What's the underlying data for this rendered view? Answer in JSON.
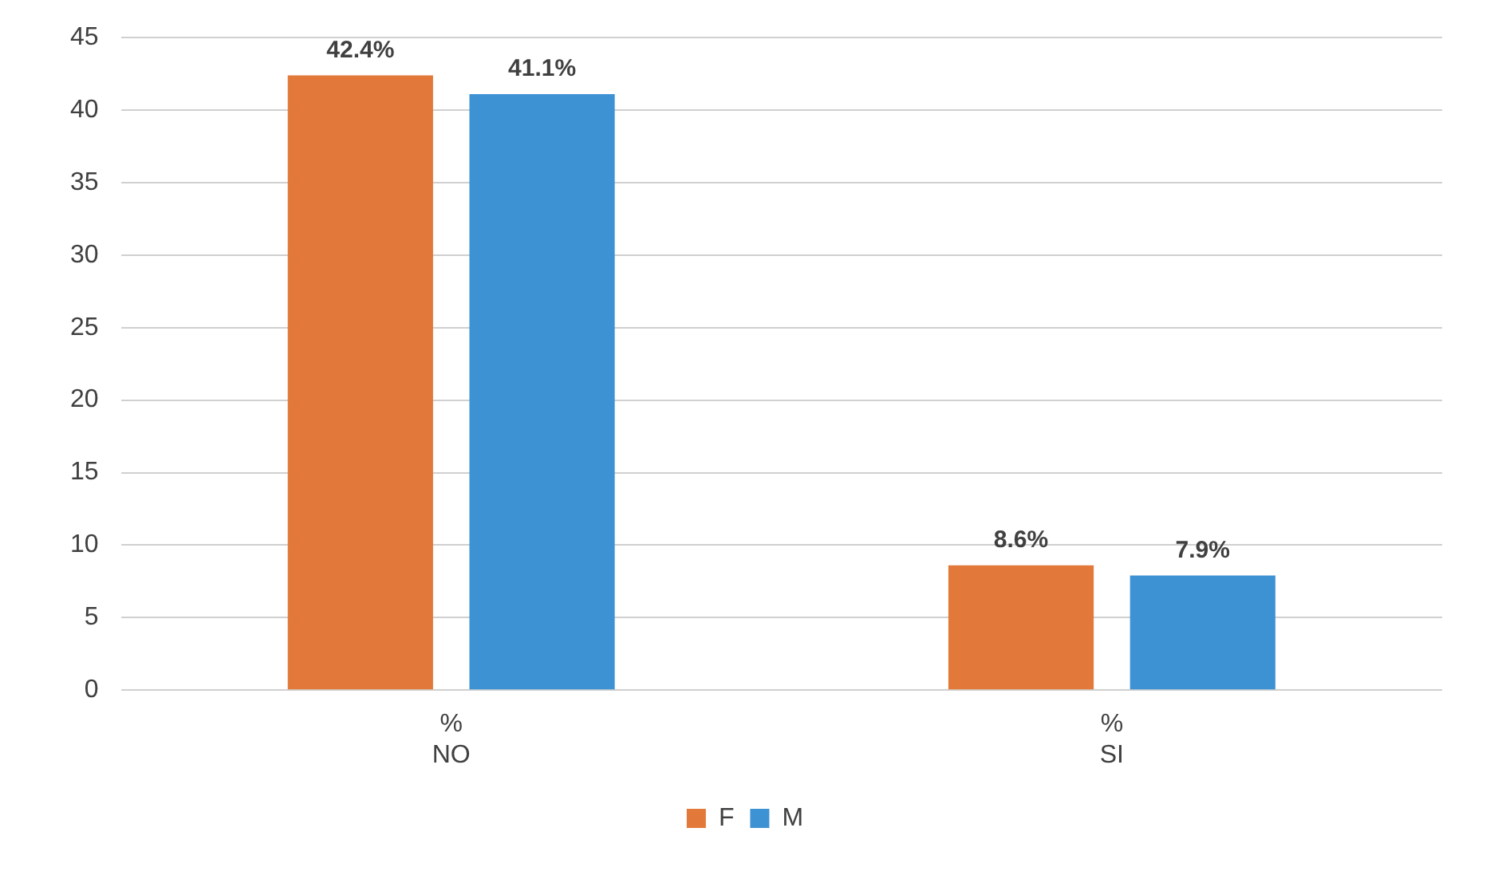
{
  "chart_data": {
    "type": "bar",
    "categories": [
      "%\nNO",
      "%\nSI"
    ],
    "series": [
      {
        "name": "F",
        "color": "#e2793a",
        "values": [
          42.4,
          8.6
        ],
        "value_labels": [
          "42.4%",
          "8.6%"
        ]
      },
      {
        "name": "M",
        "color": "#3d92d4",
        "values": [
          41.1,
          7.9
        ],
        "value_labels": [
          "41.1%",
          "7.9%"
        ]
      }
    ],
    "ylim": [
      0,
      45
    ],
    "yticks": [
      0,
      5,
      10,
      15,
      20,
      25,
      30,
      35,
      40,
      45
    ],
    "grid": "y",
    "legend": "bottom"
  }
}
